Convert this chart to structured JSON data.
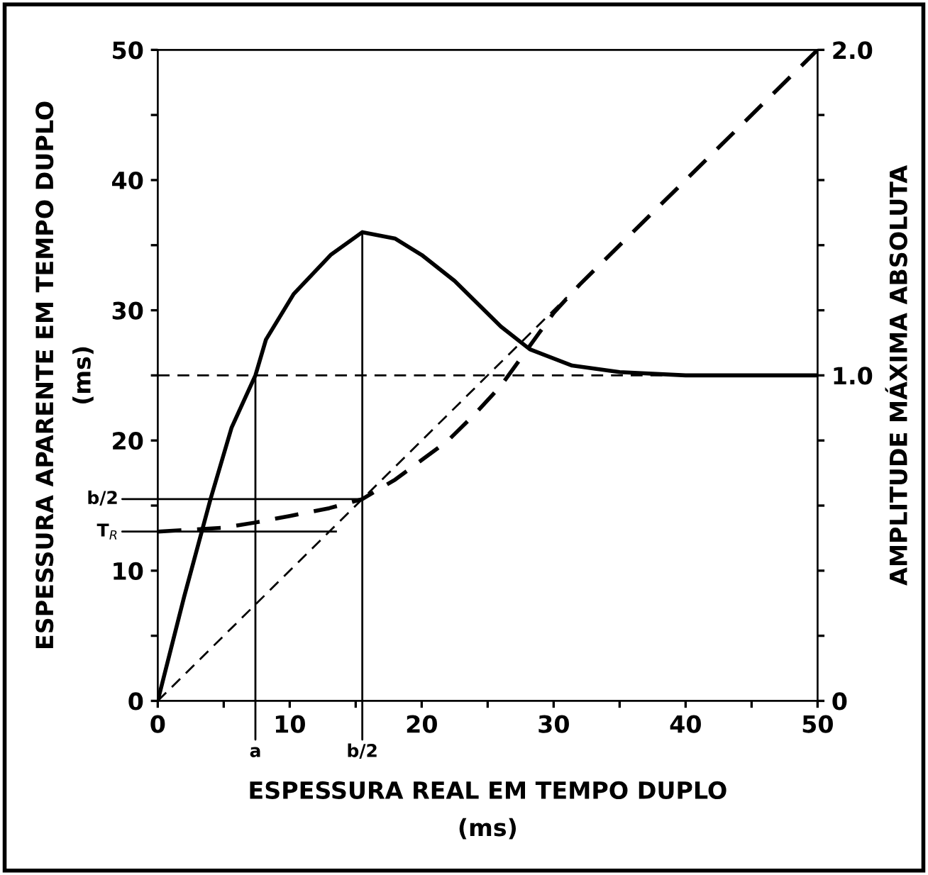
{
  "chart_data": {
    "type": "line",
    "xlabel": "ESPESSURA REAL EM TEMPO DUPLO\n(ms)",
    "ylabel": "ESPESSURA APARENTE EM TEMPO DUPLO\n(ms)",
    "y2label": "AMPLITUDE MÁXIMA ABSOLUTA",
    "xlim": [
      0,
      50
    ],
    "ylim": [
      0,
      50
    ],
    "y2lim": [
      0,
      2.0
    ],
    "xticks": [
      0,
      {
        "value": 5,
        "label": null
      },
      10,
      {
        "value": 15,
        "label": null
      },
      20,
      {
        "value": 25,
        "label": null
      },
      30,
      {
        "value": 35,
        "label": null
      },
      40,
      {
        "value": 45,
        "label": null
      },
      50
    ],
    "yticks": [
      0,
      {
        "value": 5,
        "label": null
      },
      10,
      {
        "value": 15,
        "label": null
      },
      20,
      {
        "value": 25,
        "label": null
      },
      30,
      {
        "value": 35,
        "label": null
      },
      40,
      {
        "value": 45,
        "label": null
      },
      50
    ],
    "y2ticks": [
      0,
      {
        "value": 0.2,
        "label": null
      },
      {
        "value": 0.4,
        "label": null
      },
      {
        "value": 0.6,
        "label": null
      },
      {
        "value": 0.8,
        "label": null
      },
      {
        "value": 1.0,
        "label": "1.0"
      },
      {
        "value": 1.2,
        "label": null
      },
      {
        "value": 1.4,
        "label": null
      },
      {
        "value": 1.6,
        "label": null
      },
      {
        "value": 1.8,
        "label": null
      },
      {
        "value": 2.0,
        "label": "2.0"
      }
    ],
    "grid": false,
    "legend": false,
    "marker": "none",
    "series": [
      {
        "axis": "y2",
        "color": "#000000",
        "line_style": "solid",
        "x": [
          0,
          2,
          4,
          5.6,
          7.4,
          8.2,
          10.3,
          13.1,
          15.5,
          18,
          20,
          22.5,
          26,
          28.2,
          31.4,
          35,
          40,
          50
        ],
        "values": [
          0,
          0.32,
          0.62,
          0.84,
          1.0,
          1.11,
          1.25,
          1.37,
          1.44,
          1.42,
          1.37,
          1.29,
          1.15,
          1.08,
          1.03,
          1.01,
          1.0,
          1.0
        ]
      },
      {
        "color": "#000000",
        "line_style": "dashed",
        "x": [
          0,
          5,
          7.4,
          10,
          13,
          15.5,
          18,
          20,
          22,
          24,
          26,
          28,
          30,
          32,
          50
        ],
        "values": [
          13,
          13.3,
          13.7,
          14.2,
          14.8,
          15.5,
          17,
          18.5,
          20,
          22,
          24.2,
          27,
          29.8,
          32,
          50
        ]
      },
      {
        "color": "#000000",
        "line_style": "dashed",
        "x": [
          0,
          31
        ],
        "values": [
          0,
          31
        ]
      },
      {
        "color": "#000000",
        "line_style": "solid",
        "x": [
          7.4,
          7.4
        ],
        "values": [
          0,
          25
        ]
      },
      {
        "color": "#000000",
        "line_style": "solid",
        "x": [
          15.5,
          15.5
        ],
        "values": [
          0,
          36
        ]
      },
      {
        "color": "#000000",
        "line_style": "solid",
        "x": [
          0,
          15.5
        ],
        "values": [
          15.5,
          15.5
        ]
      },
      {
        "color": "#000000",
        "line_style": "solid",
        "x": [
          0,
          13.5
        ],
        "values": [
          13,
          13
        ]
      }
    ],
    "ref_lines": [
      {
        "axis": "y",
        "value": 25,
        "color": "#000000",
        "line_style": "dashed"
      }
    ],
    "annotations": [
      {
        "text": "a",
        "x": 7.4,
        "y": 0
      },
      {
        "text": "b/2",
        "x": 15.5,
        "y": 0
      },
      {
        "text": "b/2",
        "x": 0,
        "y": 15.5
      },
      {
        "text": "T$_{R}$",
        "x": 0,
        "y": 13
      }
    ]
  }
}
